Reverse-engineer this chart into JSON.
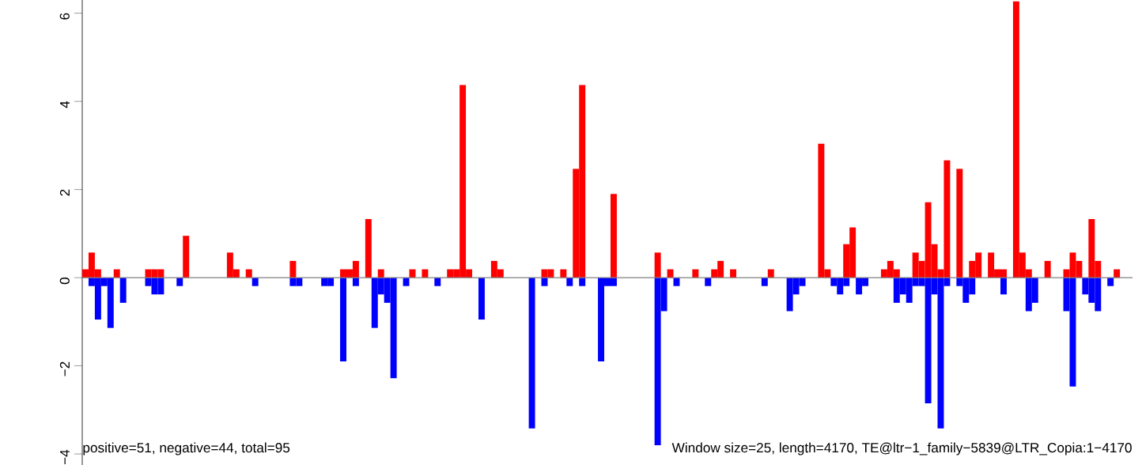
{
  "chart_data": {
    "type": "bar",
    "categories": [
      null,
      null,
      null,
      null,
      null,
      null,
      null,
      null,
      null,
      null,
      null,
      null,
      null,
      null,
      null,
      null,
      null,
      null,
      null,
      null,
      null,
      null,
      null,
      null,
      null,
      null,
      null,
      null,
      null,
      null,
      null,
      null,
      null,
      null,
      null,
      null,
      null,
      null,
      null,
      null,
      null,
      null,
      null,
      null,
      null,
      null,
      null,
      null,
      null,
      null,
      null,
      null,
      null,
      null,
      null,
      null,
      null,
      null,
      null,
      null,
      null,
      null,
      null,
      null,
      null,
      null,
      null,
      null,
      null,
      null,
      null,
      null,
      null,
      null,
      null,
      null,
      null,
      null,
      null,
      null,
      null,
      null,
      null,
      null,
      null,
      null,
      null,
      null,
      null,
      null,
      null,
      null,
      null,
      null,
      null,
      null,
      null,
      null,
      null,
      null,
      null,
      null,
      null,
      null,
      null,
      null,
      null,
      null,
      null,
      null,
      null,
      null,
      null,
      null,
      null,
      null,
      null,
      null,
      null,
      null,
      null,
      null,
      null,
      null,
      null,
      null,
      null,
      null,
      null,
      null,
      null,
      null,
      null,
      null,
      null,
      null,
      null,
      null,
      null,
      null,
      null,
      null,
      null,
      null,
      null,
      null,
      null,
      null,
      null,
      null,
      null,
      null,
      null,
      null,
      null,
      null,
      null,
      null,
      null,
      null,
      null,
      null,
      null,
      null,
      null,
      null,
      null
    ],
    "series": [
      {
        "color": "#ff0000",
        "values": [
          0.19,
          0.57,
          0.19,
          0,
          0,
          0.19,
          0,
          0,
          0,
          0,
          0.19,
          0.19,
          0.19,
          0,
          0,
          0,
          0.95,
          0,
          0,
          0,
          0,
          0,
          0,
          0.57,
          0.19,
          0,
          0.19,
          0,
          0,
          0,
          0,
          0,
          0,
          0.38,
          0,
          0,
          0,
          0,
          0,
          0,
          0,
          0.19,
          0.19,
          0.38,
          0,
          1.33,
          0,
          0.19,
          0,
          0,
          0,
          0,
          0.19,
          0,
          0.19,
          0,
          0,
          0,
          0.19,
          0.19,
          4.37,
          0.19,
          0,
          0,
          0,
          0.38,
          0.19,
          0,
          0,
          0,
          0,
          0,
          0,
          0.19,
          0.19,
          0,
          0.19,
          0,
          2.47,
          4.37,
          0,
          0,
          0,
          0,
          1.9,
          0,
          0,
          0,
          0,
          0,
          0,
          0.57,
          0,
          0.19,
          0,
          0,
          0,
          0.19,
          0,
          0,
          0.19,
          0.38,
          0,
          0.19,
          0,
          0,
          0,
          0,
          0,
          0.19,
          0,
          0,
          0,
          0,
          0,
          0,
          0,
          3.04,
          0.19,
          0,
          0,
          0.76,
          1.14,
          0,
          0,
          0,
          0,
          0.19,
          0.38,
          0.19,
          0,
          0,
          0.57,
          0.38,
          1.71,
          0.76,
          0.19,
          2.66,
          0,
          2.47,
          0,
          0.38,
          0.57,
          0,
          0.57,
          0.19,
          0.19,
          0,
          6.27,
          0.57,
          0.19,
          0,
          0,
          0.38,
          0,
          0,
          0.19,
          0.57,
          0.38,
          0,
          1.33,
          0.38,
          0,
          0,
          0.19,
          0,
          0
        ]
      },
      {
        "color": "#0000ff",
        "values": [
          0,
          -0.19,
          -0.95,
          -0.19,
          -1.14,
          0,
          -0.57,
          0,
          0,
          0,
          -0.19,
          -0.38,
          -0.38,
          0,
          0,
          -0.19,
          0,
          0,
          0,
          0,
          0,
          0,
          0,
          0,
          0,
          0,
          0,
          -0.19,
          0,
          0,
          0,
          0,
          0,
          -0.19,
          -0.19,
          0,
          0,
          0,
          -0.19,
          -0.19,
          0,
          -1.9,
          0,
          -0.19,
          0,
          0,
          -1.14,
          -0.38,
          -0.57,
          -2.28,
          0,
          -0.19,
          0,
          0,
          0,
          0,
          -0.19,
          0,
          0,
          0,
          0,
          0,
          0,
          -0.95,
          0,
          0,
          0,
          0,
          0,
          0,
          0,
          -3.42,
          0,
          -0.19,
          0,
          0,
          0,
          -0.19,
          0,
          -0.19,
          0,
          0,
          -1.9,
          -0.19,
          -0.19,
          0,
          0,
          0,
          0,
          0,
          0,
          -3.8,
          -0.76,
          0,
          -0.19,
          0,
          0,
          0,
          0,
          -0.19,
          0,
          0,
          0,
          0,
          0,
          0,
          0,
          0,
          -0.19,
          0,
          0,
          0,
          -0.76,
          -0.38,
          -0.19,
          0,
          0,
          0,
          0,
          -0.19,
          -0.38,
          -0.19,
          0,
          -0.38,
          -0.19,
          0,
          0,
          0,
          0,
          -0.57,
          -0.38,
          -0.57,
          -0.19,
          -0.19,
          -2.85,
          -0.38,
          -3.42,
          -0.19,
          0,
          -0.19,
          -0.57,
          -0.38,
          0,
          0,
          0,
          0,
          -0.38,
          0,
          0,
          0,
          -0.76,
          -0.57,
          0,
          0,
          0,
          0,
          -0.76,
          -2.47,
          0,
          -0.38,
          -0.57,
          -0.76,
          0,
          -0.19,
          0,
          0,
          0
        ]
      }
    ],
    "ylim": [
      -4.25,
      6.3
    ],
    "yticks": [
      {
        "value": -4,
        "label": "−4"
      },
      {
        "value": -2,
        "label": "−2"
      },
      0,
      2,
      4,
      6
    ],
    "tick_labels": "y",
    "ref_lines": [
      {
        "axis": "y",
        "value": 0,
        "color": "#808080"
      }
    ],
    "annotations": [
      "positive=51, negative=44, total=95",
      "Window size=25, length=4170, TE@ltr−1_family−5839@LTR_Copia:1−4170"
    ]
  }
}
